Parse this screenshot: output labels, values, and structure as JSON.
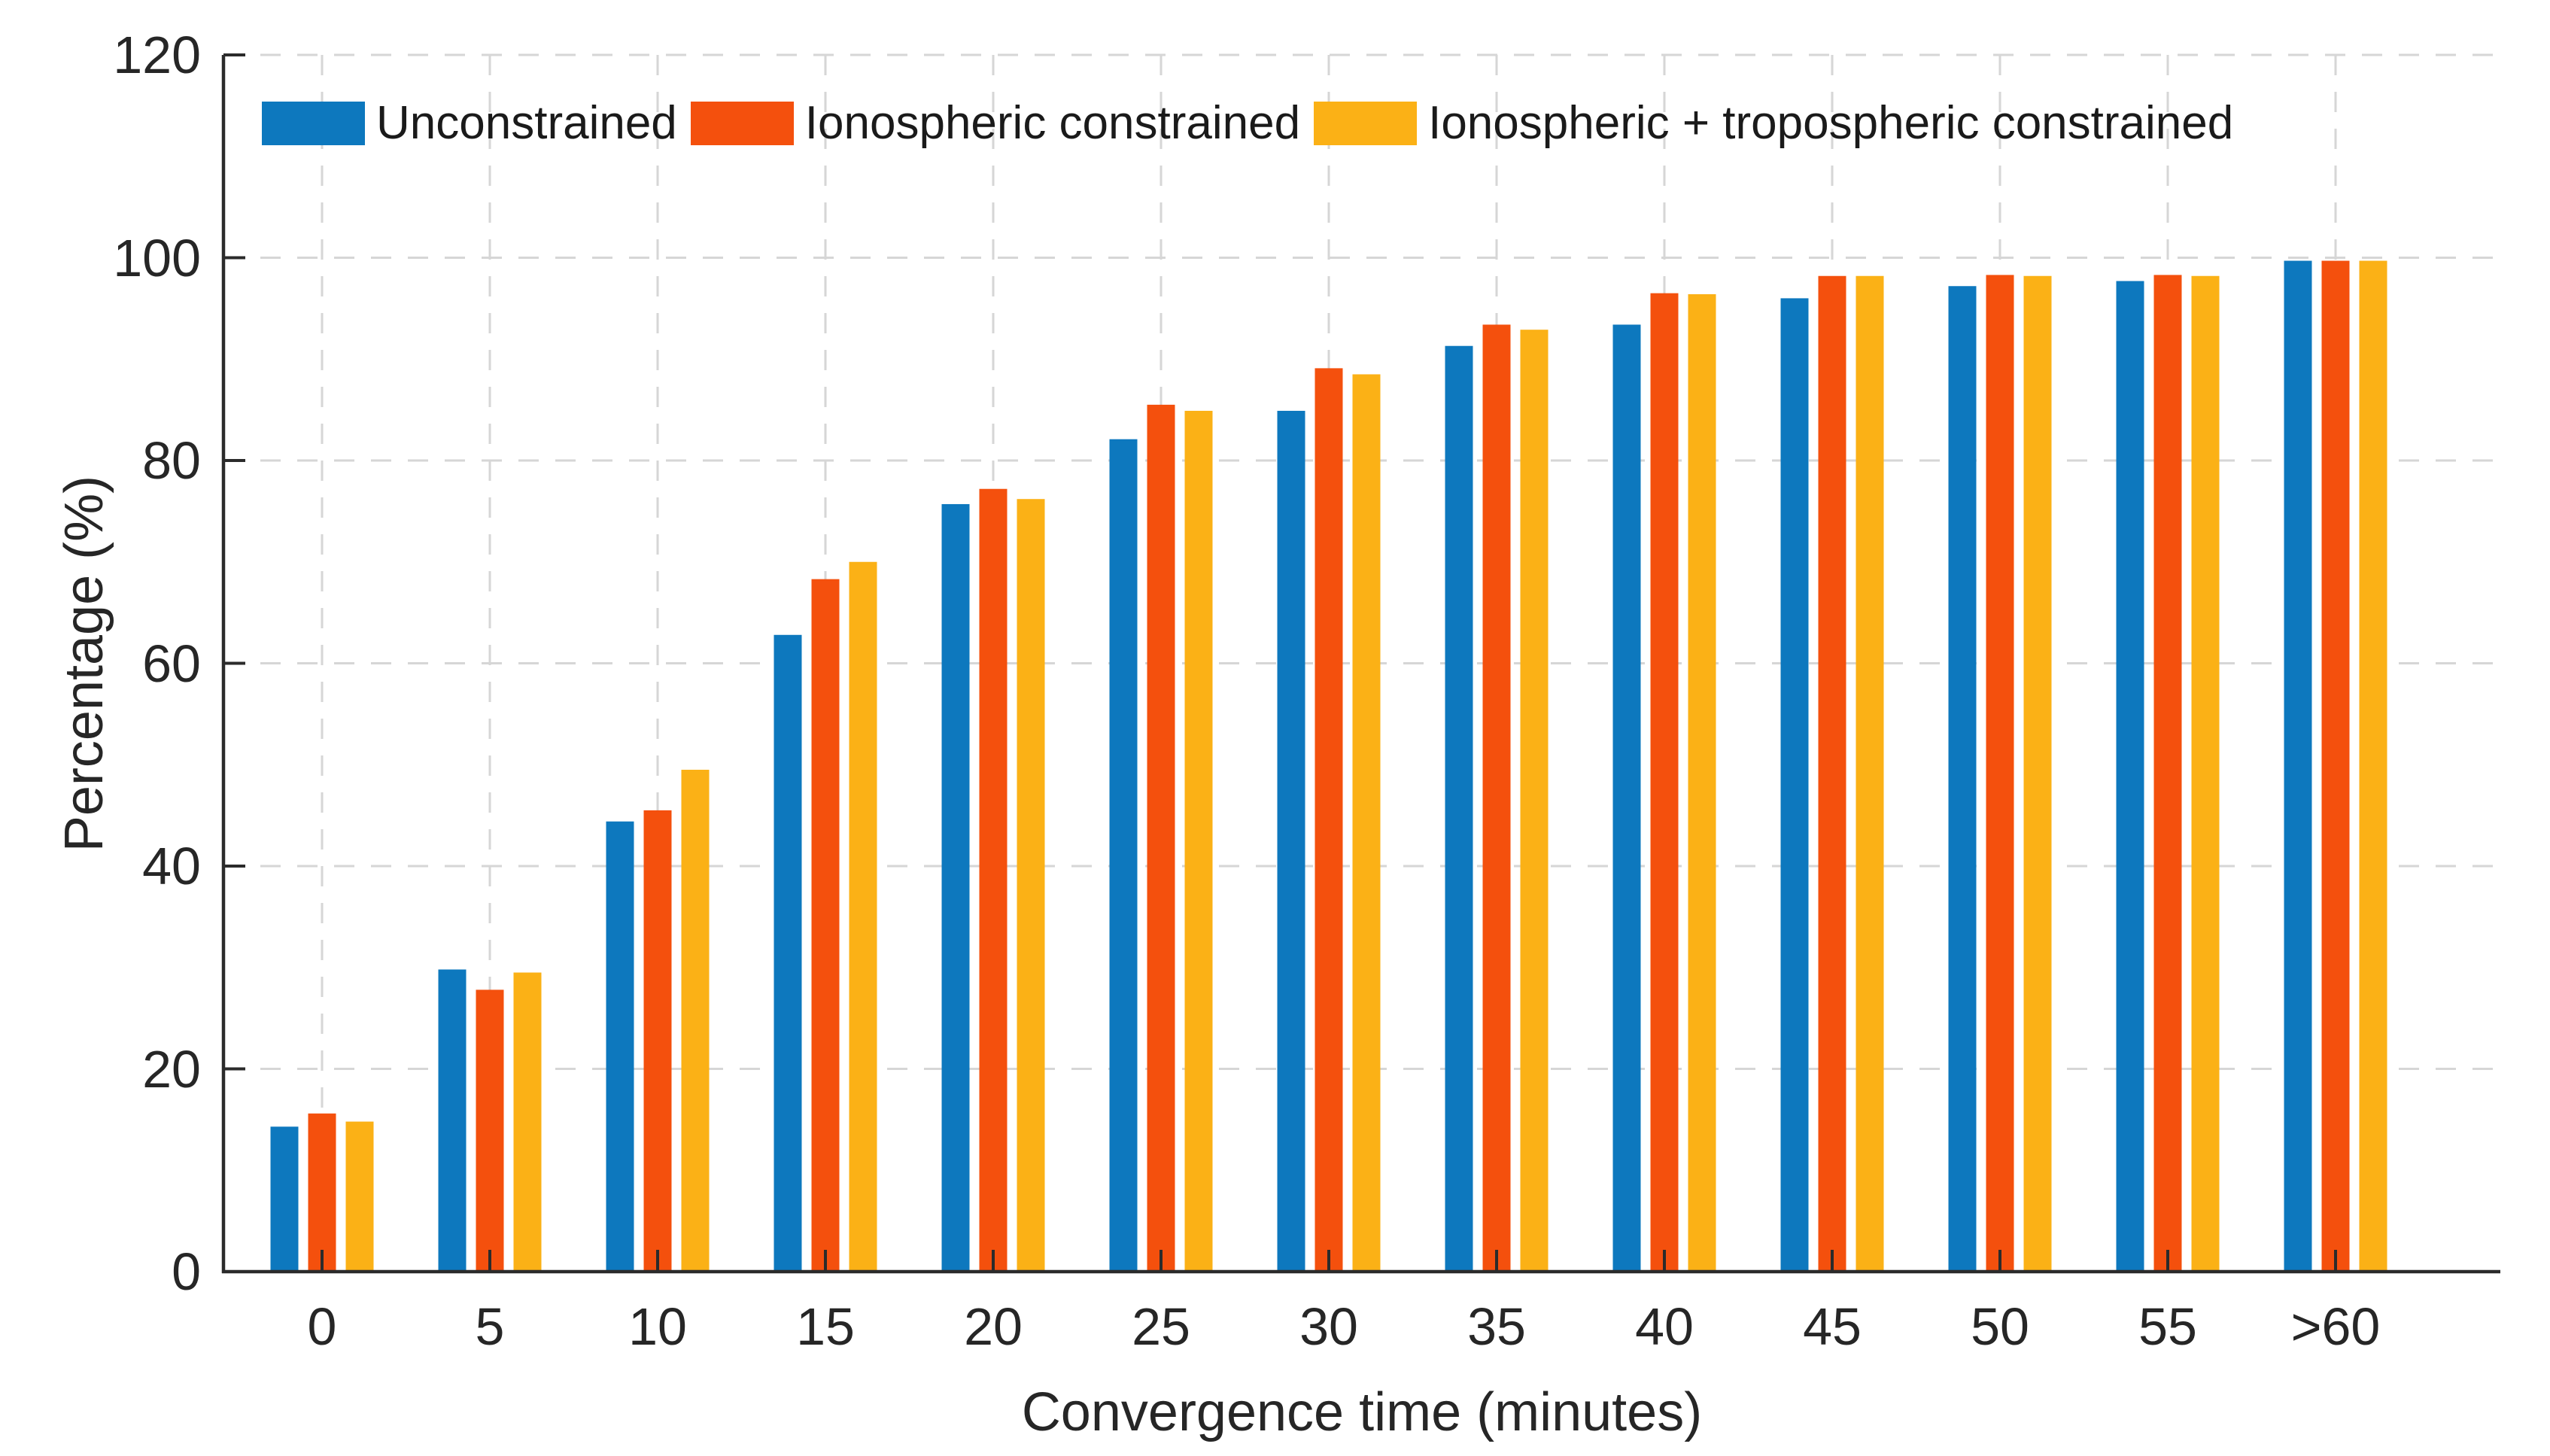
{
  "chart_data": {
    "type": "bar",
    "title": "",
    "xlabel": "Convergence time (minutes)",
    "ylabel": "Percentage (%)",
    "ylim": [
      0,
      120
    ],
    "yticks": [
      0,
      20,
      40,
      60,
      80,
      100,
      120
    ],
    "grid": "dashed-both-axes",
    "legend_position": "top-left-inside",
    "categories": [
      "0",
      "5",
      "10",
      "15",
      "20",
      "25",
      "30",
      "35",
      "40",
      "45",
      "50",
      "55",
      ">60"
    ],
    "series": [
      {
        "name": "Unconstrained",
        "color": "#0D78BE",
        "values": [
          14.3,
          29.8,
          44.4,
          62.8,
          75.7,
          82.1,
          84.9,
          91.3,
          93.4,
          96.0,
          97.2,
          97.7,
          99.7
        ]
      },
      {
        "name": "Ionospheric constrained",
        "color": "#F4500D",
        "values": [
          15.6,
          27.8,
          45.5,
          68.3,
          77.2,
          85.5,
          89.1,
          93.4,
          96.5,
          98.2,
          98.3,
          98.3,
          99.7
        ]
      },
      {
        "name": "Ionospheric + tropospheric constrained",
        "color": "#FBB116",
        "values": [
          14.8,
          29.5,
          49.5,
          70.0,
          76.2,
          84.9,
          88.5,
          92.9,
          96.4,
          98.2,
          98.2,
          98.2,
          99.7
        ]
      }
    ]
  },
  "colors": {
    "background": "#ffffff",
    "axis": "#2b2b2b",
    "grid": "#d6d6d6",
    "text": "#262626"
  }
}
